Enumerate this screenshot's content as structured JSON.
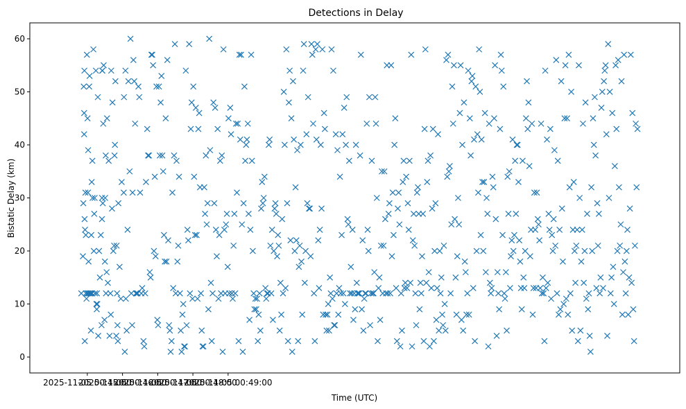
{
  "chart_data": {
    "type": "scatter",
    "title": "Detections in Delay",
    "xlabel": "Time (UTC)",
    "ylabel": "Bistatic Delay (km)",
    "marker": "x",
    "color": "#1f77b4",
    "xlim": [
      -98,
      1010
    ],
    "ylim": [
      -3,
      63
    ],
    "x_unit": "seconds after 2025-11-05 00:45:00",
    "x_ticks": [
      {
        "value": 0,
        "label": "2025-11-05 00:45:00"
      },
      {
        "value": 60,
        "label": "2025-11-05 00:46:00"
      },
      {
        "value": 120,
        "label": "2025-11-05 00:47:00"
      },
      {
        "value": 180,
        "label": "2025-11-05 00:48:00"
      },
      {
        "value": 240,
        "label": "2025-11-05 00:49:00"
      }
    ],
    "y_ticks": [
      0,
      10,
      20,
      30,
      40,
      50,
      60
    ],
    "points_x_seconds": [
      -10.3,
      -7.5,
      -6.8,
      -6.1,
      -5.4,
      -5.4,
      -5.0,
      -4.6,
      -4.3,
      -3.9,
      -3.2,
      -2.5,
      -2.5,
      -1.4,
      -0.7,
      0.0,
      0.4,
      0.7,
      1.1,
      1.4,
      2.1,
      2.5,
      3.2,
      3.9,
      4.6,
      5.0,
      5.4,
      6.1,
      6.4,
      6.8,
      7.5,
      8.2,
      8.6,
      8.9,
      10.3,
      11.1,
      11.8,
      12.5,
      13.2,
      14.6,
      15.4,
      16.1,
      16.4,
      17.1,
      17.9,
      18.6,
      20.0,
      21.4,
      22.9,
      24.3,
      25.0,
      25.0,
      25.4,
      25.7,
      26.4,
      27.1,
      27.9,
      29.3,
      30.0,
      30.4,
      31.4,
      31.8,
      32.9,
      33.6,
      35.0,
      36.4,
      37.9,
      39.3,
      40.0,
      40.7,
      42.1,
      42.9,
      44.3,
      45.7,
      46.4,
      47.1,
      47.9,
      49.3,
      50.0,
      50.7,
      51.4,
      52.1,
      52.9,
      55.0,
      57.1,
      58.6,
      62.1,
      62.5,
      63.9,
      65.0,
      65.7,
      67.1,
      68.6,
      70.0,
      72.1,
      73.6,
      75.0,
      76.4,
      77.1,
      78.6,
      80.0,
      81.4,
      82.9,
      84.3,
      85.7,
      87.1,
      88.6,
      90.0,
      92.1,
      93.6,
      95.7,
      97.1,
      98.6,
      100.0,
      102.1,
      103.6,
      105.0,
      106.4,
      107.9,
      109.3,
      110.7,
      112.1,
      113.6,
      115.0,
      116.4,
      117.9,
      119.3,
      120.7,
      122.1,
      123.6,
      125.0,
      126.4,
      127.9,
      129.3,
      130.7,
      132.1,
      133.6,
      135.0,
      136.4,
      137.9,
      139.3,
      140.7,
      142.1,
      143.6,
      145.0,
      146.4,
      147.9,
      149.3,
      150.7,
      152.1,
      153.6,
      155.0,
      156.4,
      157.9,
      159.3,
      160.7,
      162.1,
      163.6,
      165.0,
      166.4,
      167.9,
      169.3,
      170.7,
      172.1,
      173.6,
      175.0,
      176.4,
      177.9,
      179.3,
      180.7,
      182.1,
      183.6,
      185.0,
      186.4,
      187.9,
      189.3,
      190.7,
      192.1,
      193.6,
      195.0,
      196.4,
      197.9,
      199.3,
      200.7,
      202.1,
      203.6,
      205.0,
      206.4,
      207.9,
      209.3,
      210.7,
      212.1,
      213.6,
      215.0,
      216.4,
      217.9,
      219.3,
      220.7,
      222.1,
      223.6,
      225.0,
      226.4,
      227.9,
      229.3,
      230.7,
      232.1,
      233.6,
      235.0,
      236.4,
      237.9,
      239.3,
      240.7,
      242.1,
      243.6,
      245.0,
      246.4,
      247.9,
      249.3,
      250.7,
      252.1,
      253.6,
      255.0,
      256.4,
      257.9,
      259.3,
      260.7,
      262.1,
      263.6,
      265.0,
      266.4,
      267.9,
      269.3,
      270.7,
      272.1,
      273.6,
      275.0,
      276.4,
      277.9,
      279.3,
      280.7,
      282.1,
      283.6,
      285.0,
      286.4,
      287.9,
      289.3,
      290.7,
      292.1,
      293.6,
      295.0,
      296.4,
      297.9,
      299.3,
      300.7,
      302.1,
      303.6,
      305.0,
      306.4,
      307.9,
      309.3,
      310.7,
      312.1,
      313.6,
      315.0,
      316.4,
      317.9,
      319.3,
      320.7,
      322.1,
      323.6,
      325.0,
      326.4,
      327.9,
      329.3,
      330.7,
      332.1,
      333.6,
      335.0,
      336.4,
      337.9,
      339.3,
      340.7,
      342.1,
      343.6,
      345.0,
      346.4,
      347.9,
      349.3,
      350.7,
      352.1,
      353.6,
      355.0,
      356.4,
      357.9,
      359.3,
      360.7,
      362.1,
      363.6,
      365.0,
      366.4,
      367.9,
      369.3,
      370.7,
      372.1,
      373.6,
      375.0,
      376.4,
      377.9,
      379.3,
      380.7,
      382.1,
      383.6,
      385.0,
      386.4,
      387.9,
      389.3,
      390.7,
      392.1,
      393.6,
      395.0,
      396.4,
      397.9,
      399.3,
      400.7,
      402.1,
      403.6,
      405.0,
      406.4,
      407.9,
      409.3,
      410.7,
      412.1,
      413.6,
      415.0,
      416.4,
      417.9,
      419.3,
      420.7,
      422.1,
      423.6,
      425.0,
      426.4,
      427.9,
      429.3,
      430.7,
      432.1,
      433.6,
      435.0,
      436.4,
      437.9,
      439.3,
      440.7,
      442.1,
      443.6,
      445.0,
      446.4,
      447.9,
      449.3,
      450.7,
      452.1,
      453.6,
      455.0,
      456.4,
      457.9,
      459.3,
      460.7,
      462.1,
      463.6,
      465.0,
      466.4,
      467.9,
      469.3,
      470.7,
      472.1,
      473.6,
      475.0,
      476.4,
      477.9,
      479.3,
      480.7,
      482.1,
      483.6,
      485.0,
      486.4,
      487.9,
      489.3,
      490.7,
      492.1,
      493.6,
      495.0,
      496.4,
      497.9,
      499.3,
      500.7,
      502.1,
      503.6,
      505.0,
      506.4,
      507.9,
      509.3,
      510.7,
      512.1,
      513.6,
      515.0,
      516.4,
      517.9,
      519.3,
      520.7,
      522.1,
      523.6,
      525.0,
      526.4,
      527.9,
      529.3,
      530.7,
      532.1,
      533.6,
      535.0,
      536.4,
      537.9,
      539.3,
      540.7,
      542.1,
      543.6,
      545.0,
      546.4,
      547.9,
      549.3,
      550.7,
      552.1,
      553.6,
      555.0,
      556.4,
      557.9,
      559.3,
      560.7,
      562.1,
      563.6,
      565.0,
      566.4,
      567.9,
      569.3,
      570.7,
      572.1,
      573.6,
      575.0,
      576.4,
      577.9,
      579.3,
      580.7,
      582.1,
      583.6,
      585.0,
      586.4,
      587.9,
      589.3,
      590.7,
      592.1,
      593.6,
      595.0,
      596.4,
      597.9,
      599.3,
      600.7,
      602.1,
      603.6,
      605.0,
      606.4,
      607.9,
      609.3,
      610.7,
      612.1,
      613.6,
      615.0,
      616.4,
      617.9,
      619.3,
      620.7,
      622.1,
      623.6,
      625.0,
      626.4,
      627.9,
      629.3,
      630.7,
      632.1,
      633.6,
      635.0,
      636.4,
      637.9,
      639.3,
      640.7,
      642.1,
      643.6,
      645.0,
      646.4,
      647.9,
      649.3,
      650.7,
      652.1,
      653.6,
      655.0,
      656.4,
      657.9,
      659.3,
      660.7,
      662.1,
      663.6,
      665.0,
      666.4,
      667.9,
      669.3,
      670.7,
      672.1,
      673.6,
      675.0,
      676.4,
      677.9,
      679.3,
      680.7,
      682.1,
      683.6,
      685.0,
      686.4,
      687.9,
      689.3,
      690.7,
      692.1,
      693.6,
      695.0,
      696.4,
      697.9,
      699.3,
      700.7,
      702.1,
      703.6,
      705.0,
      706.4,
      707.9,
      709.3,
      710.7,
      712.1,
      713.6,
      715.0,
      716.4,
      717.9,
      719.3,
      720.7,
      722.1,
      723.6,
      725.0,
      726.4,
      727.9,
      729.3,
      730.7,
      732.1,
      733.6,
      735.0,
      736.4,
      737.9,
      739.3,
      740.7,
      742.1,
      743.6,
      745.0,
      746.4,
      747.9,
      749.3,
      750.7,
      752.1,
      753.6,
      755.0,
      756.4,
      757.9,
      759.3,
      760.7,
      762.1,
      763.6,
      765.0,
      766.4,
      767.9,
      769.3,
      770.7,
      772.1,
      773.6,
      775.0,
      776.4,
      777.9,
      779.3,
      780.7,
      782.1,
      783.6,
      785.0,
      786.4,
      787.9,
      789.3,
      790.7,
      792.1,
      793.6,
      795.0,
      796.4,
      797.9,
      799.3,
      800.7,
      802.1,
      803.6,
      805.0,
      806.4,
      807.9,
      809.3,
      810.7,
      812.1,
      813.6,
      815.0,
      816.4,
      817.9,
      819.3,
      820.7,
      822.1,
      823.6,
      825.0,
      826.4,
      827.9,
      829.3,
      830.7,
      832.1,
      833.6,
      835.0,
      836.4,
      837.9,
      839.3,
      840.7,
      842.1,
      843.6,
      845.0,
      846.4,
      847.9,
      849.3,
      850.7,
      852.1,
      853.6,
      855.0,
      856.4,
      857.9,
      859.3,
      860.7,
      862.1,
      863.6,
      865.0,
      866.4,
      867.9,
      869.3,
      870.7,
      872.1,
      873.6,
      875.0,
      876.4,
      877.9,
      879.3,
      880.7,
      882.1,
      883.6,
      885.0,
      886.4,
      887.9,
      889.3,
      890.7,
      892.1,
      893.6,
      895.0,
      896.4,
      897.9,
      899.3,
      900.7,
      902.1,
      903.6,
      905.0,
      906.4,
      907.9,
      909.3,
      910.7,
      912.1,
      913.6,
      915.0,
      916.4,
      917.9,
      919.3,
      920.7,
      922.1,
      923.6,
      925.0,
      926.4,
      927.9,
      929.3,
      930.7,
      932.1,
      933.6,
      935.0,
      936.4,
      937.9
    ],
    "points_y_km": [
      12,
      19,
      29,
      51,
      46,
      42,
      54,
      26,
      3,
      24,
      31,
      12,
      23,
      11,
      57,
      12,
      45,
      12,
      31,
      39,
      18,
      12,
      51,
      53,
      12,
      12,
      12,
      5,
      12,
      23,
      33,
      12,
      37,
      30,
      58,
      20,
      27,
      30,
      12,
      54,
      10,
      9,
      12,
      10,
      49,
      4,
      20,
      15,
      23,
      6,
      26,
      30,
      54,
      54,
      29,
      44,
      55,
      7,
      18,
      30,
      38,
      12,
      16,
      45,
      14,
      37,
      4,
      12,
      8,
      54,
      28,
      48,
      20,
      21,
      38,
      40,
      52,
      4,
      21,
      12,
      6,
      3,
      29,
      17,
      11,
      33,
      31,
      49,
      1,
      54,
      11,
      5,
      24,
      52,
      35,
      60,
      12,
      6,
      31,
      56,
      52,
      44,
      12,
      12,
      12,
      51,
      49,
      31,
      12,
      13,
      3,
      2,
      12,
      33,
      43,
      38,
      38,
      16,
      15,
      57,
      57,
      55,
      20,
      34,
      19,
      51,
      7,
      6,
      51,
      38,
      48,
      53,
      38,
      35,
      23,
      18,
      45,
      18,
      56,
      22,
      6,
      5,
      1,
      3,
      31,
      13,
      38,
      59,
      12,
      37,
      18,
      21,
      34,
      12,
      5,
      1,
      8,
      10,
      2,
      2,
      54,
      6,
      24,
      22,
      59,
      12,
      43,
      48,
      11,
      51,
      34,
      23,
      47,
      23,
      11,
      43,
      46,
      32,
      12,
      5,
      2,
      2,
      32,
      27,
      38,
      25,
      29,
      9,
      60,
      39,
      14,
      3,
      12,
      48,
      29,
      47,
      24,
      19,
      43,
      11,
      23,
      37,
      12,
      38,
      1,
      58,
      24,
      12,
      25,
      27,
      17,
      45,
      12,
      47,
      42,
      12,
      11,
      21,
      27,
      12,
      44,
      31,
      44,
      3,
      57,
      41,
      57,
      25,
      1,
      29,
      51,
      37,
      40,
      41,
      44,
      27,
      7,
      24,
      57,
      37,
      20,
      12,
      9,
      11,
      9,
      11,
      3,
      8,
      12,
      5,
      28,
      33,
      29,
      30,
      34,
      13,
      11,
      12,
      12,
      40,
      41,
      21,
      12,
      24,
      7,
      20,
      28,
      29,
      27,
      19,
      23,
      21,
      5,
      14,
      8,
      26,
      12,
      50,
      40,
      13,
      58,
      29,
      3,
      48,
      54,
      22,
      45,
      1,
      52,
      41,
      20,
      32,
      22,
      39,
      3,
      17,
      21,
      40,
      18,
      8,
      54,
      59,
      14,
      20,
      42,
      29,
      49,
      28,
      28,
      19,
      59,
      57,
      44,
      12,
      3,
      58,
      41,
      59,
      22,
      13,
      24,
      40,
      28,
      58,
      8,
      46,
      43,
      8,
      5,
      8,
      10,
      5,
      15,
      12,
      58,
      11,
      54,
      6,
      6,
      42,
      12,
      39,
      8,
      13,
      34,
      12,
      23,
      42,
      12,
      47,
      10,
      40,
      49,
      26,
      25,
      37,
      12,
      17,
      12,
      24,
      7,
      12,
      9,
      40,
      14,
      12,
      12,
      12,
      38,
      57,
      9,
      22,
      5,
      11,
      12,
      12,
      44,
      24,
      20,
      49,
      6,
      12,
      37,
      12,
      12,
      16,
      49,
      44,
      30,
      3,
      13,
      15,
      7,
      21,
      35,
      12,
      21,
      35,
      26,
      12,
      55,
      12,
      27,
      29,
      12,
      55,
      19,
      31,
      23,
      40,
      45,
      13,
      3,
      28,
      31,
      25,
      2,
      12,
      5,
      33,
      37,
      13,
      14,
      34,
      13,
      29,
      24,
      37,
      14,
      57,
      2,
      22,
      27,
      21,
      12,
      6,
      31,
      32,
      27,
      9,
      14,
      12,
      19,
      27,
      3,
      43,
      58,
      14,
      33,
      37,
      16,
      2,
      38,
      13,
      28,
      43,
      3,
      20,
      29,
      7,
      13,
      42,
      5,
      20,
      12,
      15,
      8,
      6,
      21,
      10,
      5,
      56,
      34,
      57,
      35,
      36,
      12,
      25,
      51,
      44,
      55,
      26,
      15,
      8,
      19,
      30,
      25,
      46,
      55,
      7,
      40,
      5,
      48,
      18,
      16,
      8,
      12,
      54,
      8,
      45,
      38,
      52,
      53,
      13,
      41,
      3,
      51,
      20,
      42,
      31,
      58,
      50,
      23,
      41,
      33,
      20,
      33,
      46,
      16,
      30,
      27,
      2,
      44,
      14,
      12,
      13,
      34,
      32,
      45,
      55,
      26,
      4,
      16,
      12,
      9,
      43,
      57,
      54,
      23,
      51,
      12,
      11,
      16,
      5,
      34,
      27,
      35,
      13,
      19,
      22,
      41,
      20,
      23,
      37,
      27,
      40,
      40,
      33,
      22,
      18,
      13,
      9,
      37,
      15,
      13,
      20,
      45,
      52,
      43,
      48,
      36,
      19,
      24,
      44,
      8,
      13,
      31,
      24,
      13,
      31,
      26,
      25,
      22,
      13,
      44,
      12,
      15,
      12,
      3,
      54,
      13,
      41,
      14,
      27,
      24,
      43,
      11,
      23,
      20,
      26,
      39,
      21,
      56,
      12,
      37,
      8,
      24,
      9,
      52,
      28,
      18,
      10,
      45,
      55,
      11,
      45,
      8,
      57,
      32,
      12,
      50,
      5,
      24,
      33,
      20,
      14,
      21,
      24,
      3,
      55,
      30,
      5,
      18,
      24,
      44,
      14,
      20,
      48,
      11,
      27,
      9,
      12,
      4,
      1,
      32,
      20,
      45,
      40,
      49,
      38,
      13,
      29,
      21,
      27,
      12,
      15,
      47,
      50,
      13,
      52,
      54,
      55,
      42,
      4,
      59,
      30,
      50,
      12,
      15,
      46,
      17,
      10,
      36,
      55,
      43,
      20,
      56,
      32,
      21,
      25,
      52,
      8,
      16,
      57,
      18,
      12,
      20,
      24,
      8,
      15,
      28,
      57,
      14,
      46,
      9,
      3,
      21,
      44,
      32,
      43,
      22,
      34,
      51,
      14,
      35,
      29,
      37,
      8,
      13,
      35,
      42,
      18,
      11,
      33,
      15,
      12,
      11,
      43,
      32,
      7,
      18,
      40,
      13,
      27,
      25,
      6,
      9,
      22,
      37,
      12,
      46,
      3,
      26,
      9,
      23,
      11,
      36,
      21,
      5,
      15,
      48,
      58,
      12,
      2,
      56,
      20,
      34,
      13,
      33,
      20,
      55,
      12,
      29,
      8,
      19,
      38,
      52,
      6,
      27,
      44,
      17,
      21,
      15,
      39,
      24,
      50,
      12,
      46,
      31,
      9,
      22,
      19,
      3,
      30,
      14,
      44,
      28,
      18,
      13,
      36,
      5,
      25,
      53,
      46,
      10,
      33,
      41,
      20,
      14,
      26,
      8,
      31,
      47,
      39,
      16,
      21,
      59,
      45
    ]
  }
}
